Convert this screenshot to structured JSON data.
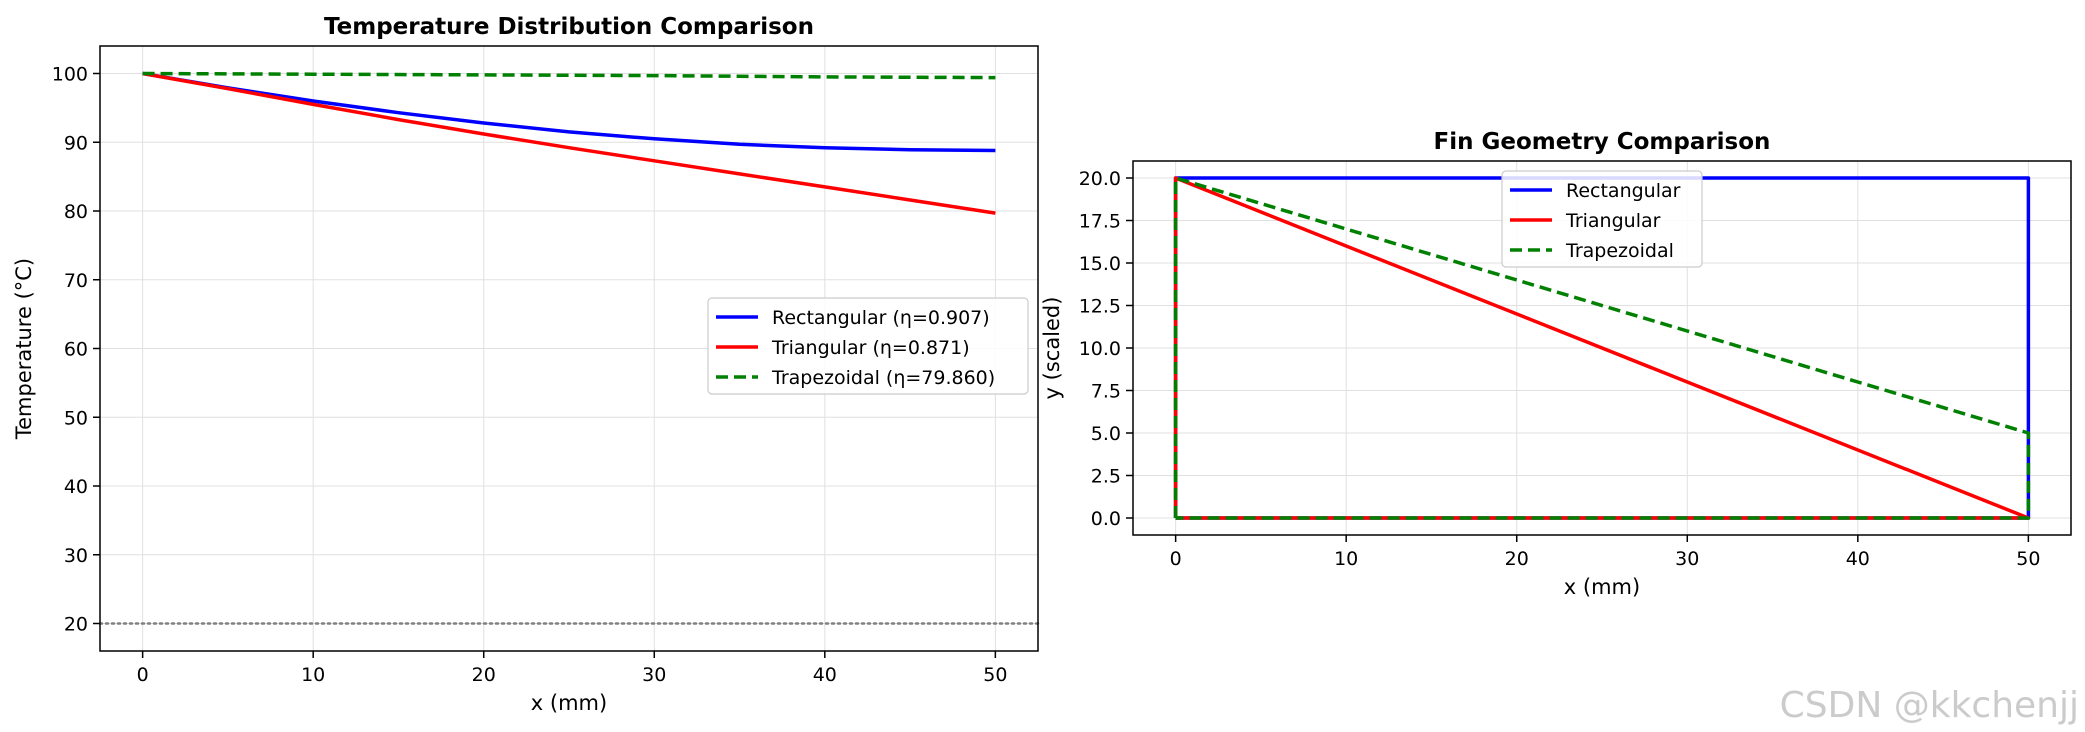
{
  "chart_data": [
    {
      "type": "line",
      "title": "Temperature Distribution Comparison",
      "xlabel": "x (mm)",
      "ylabel": "Temperature (°C)",
      "xlim": [
        -2.5,
        52.5
      ],
      "ylim": [
        16,
        104
      ],
      "xticks": [
        0,
        10,
        20,
        30,
        40,
        50
      ],
      "yticks": [
        20,
        30,
        40,
        50,
        60,
        70,
        80,
        90,
        100
      ],
      "grid": true,
      "legend_position": "center-right",
      "reference_line": {
        "y": 20,
        "color": "#808080",
        "style": "dotted"
      },
      "series": [
        {
          "name": "Rectangular (η=0.907)",
          "color": "#0000ff",
          "style": "solid",
          "x": [
            0,
            5,
            10,
            15,
            20,
            25,
            30,
            35,
            40,
            45,
            50
          ],
          "y": [
            100,
            97.9,
            96.0,
            94.3,
            92.8,
            91.5,
            90.5,
            89.7,
            89.2,
            88.9,
            88.8
          ]
        },
        {
          "name": "Triangular (η=0.871)",
          "color": "#ff0000",
          "style": "solid",
          "x": [
            0,
            5,
            10,
            15,
            20,
            25,
            30,
            35,
            40,
            45,
            50
          ],
          "y": [
            100,
            97.8,
            95.5,
            93.3,
            91.2,
            89.2,
            87.3,
            85.4,
            83.5,
            81.6,
            79.7
          ]
        },
        {
          "name": "Trapezoidal (η=79.860)",
          "color": "#008000",
          "style": "dashed",
          "x": [
            0,
            10,
            20,
            30,
            40,
            50
          ],
          "y": [
            100,
            99.9,
            99.8,
            99.7,
            99.5,
            99.4
          ]
        }
      ]
    },
    {
      "type": "line",
      "title": "Fin Geometry Comparison",
      "xlabel": "x (mm)",
      "ylabel": "y (scaled)",
      "xlim": [
        -2.5,
        52.5
      ],
      "ylim": [
        -1,
        21
      ],
      "xticks": [
        0,
        10,
        20,
        30,
        40,
        50
      ],
      "yticks": [
        0.0,
        2.5,
        5.0,
        7.5,
        10.0,
        12.5,
        15.0,
        17.5,
        20.0
      ],
      "ytick_labels": [
        "0.0",
        "2.5",
        "5.0",
        "7.5",
        "10.0",
        "12.5",
        "15.0",
        "17.5",
        "20.0"
      ],
      "grid": true,
      "legend_position": "upper-center",
      "series": [
        {
          "name": "Rectangular",
          "color": "#0000ff",
          "style": "solid",
          "x": [
            0,
            0,
            50,
            50,
            0
          ],
          "y": [
            0,
            20,
            20,
            0,
            0
          ]
        },
        {
          "name": "Triangular",
          "color": "#ff0000",
          "style": "solid",
          "x": [
            0,
            0,
            50,
            0
          ],
          "y": [
            0,
            20,
            0,
            0
          ]
        },
        {
          "name": "Trapezoidal",
          "color": "#008000",
          "style": "dashed",
          "x": [
            0,
            0,
            50,
            50,
            0
          ],
          "y": [
            0,
            20,
            5,
            0,
            0
          ]
        }
      ]
    }
  ],
  "watermark": "CSDN @kkchenjj"
}
